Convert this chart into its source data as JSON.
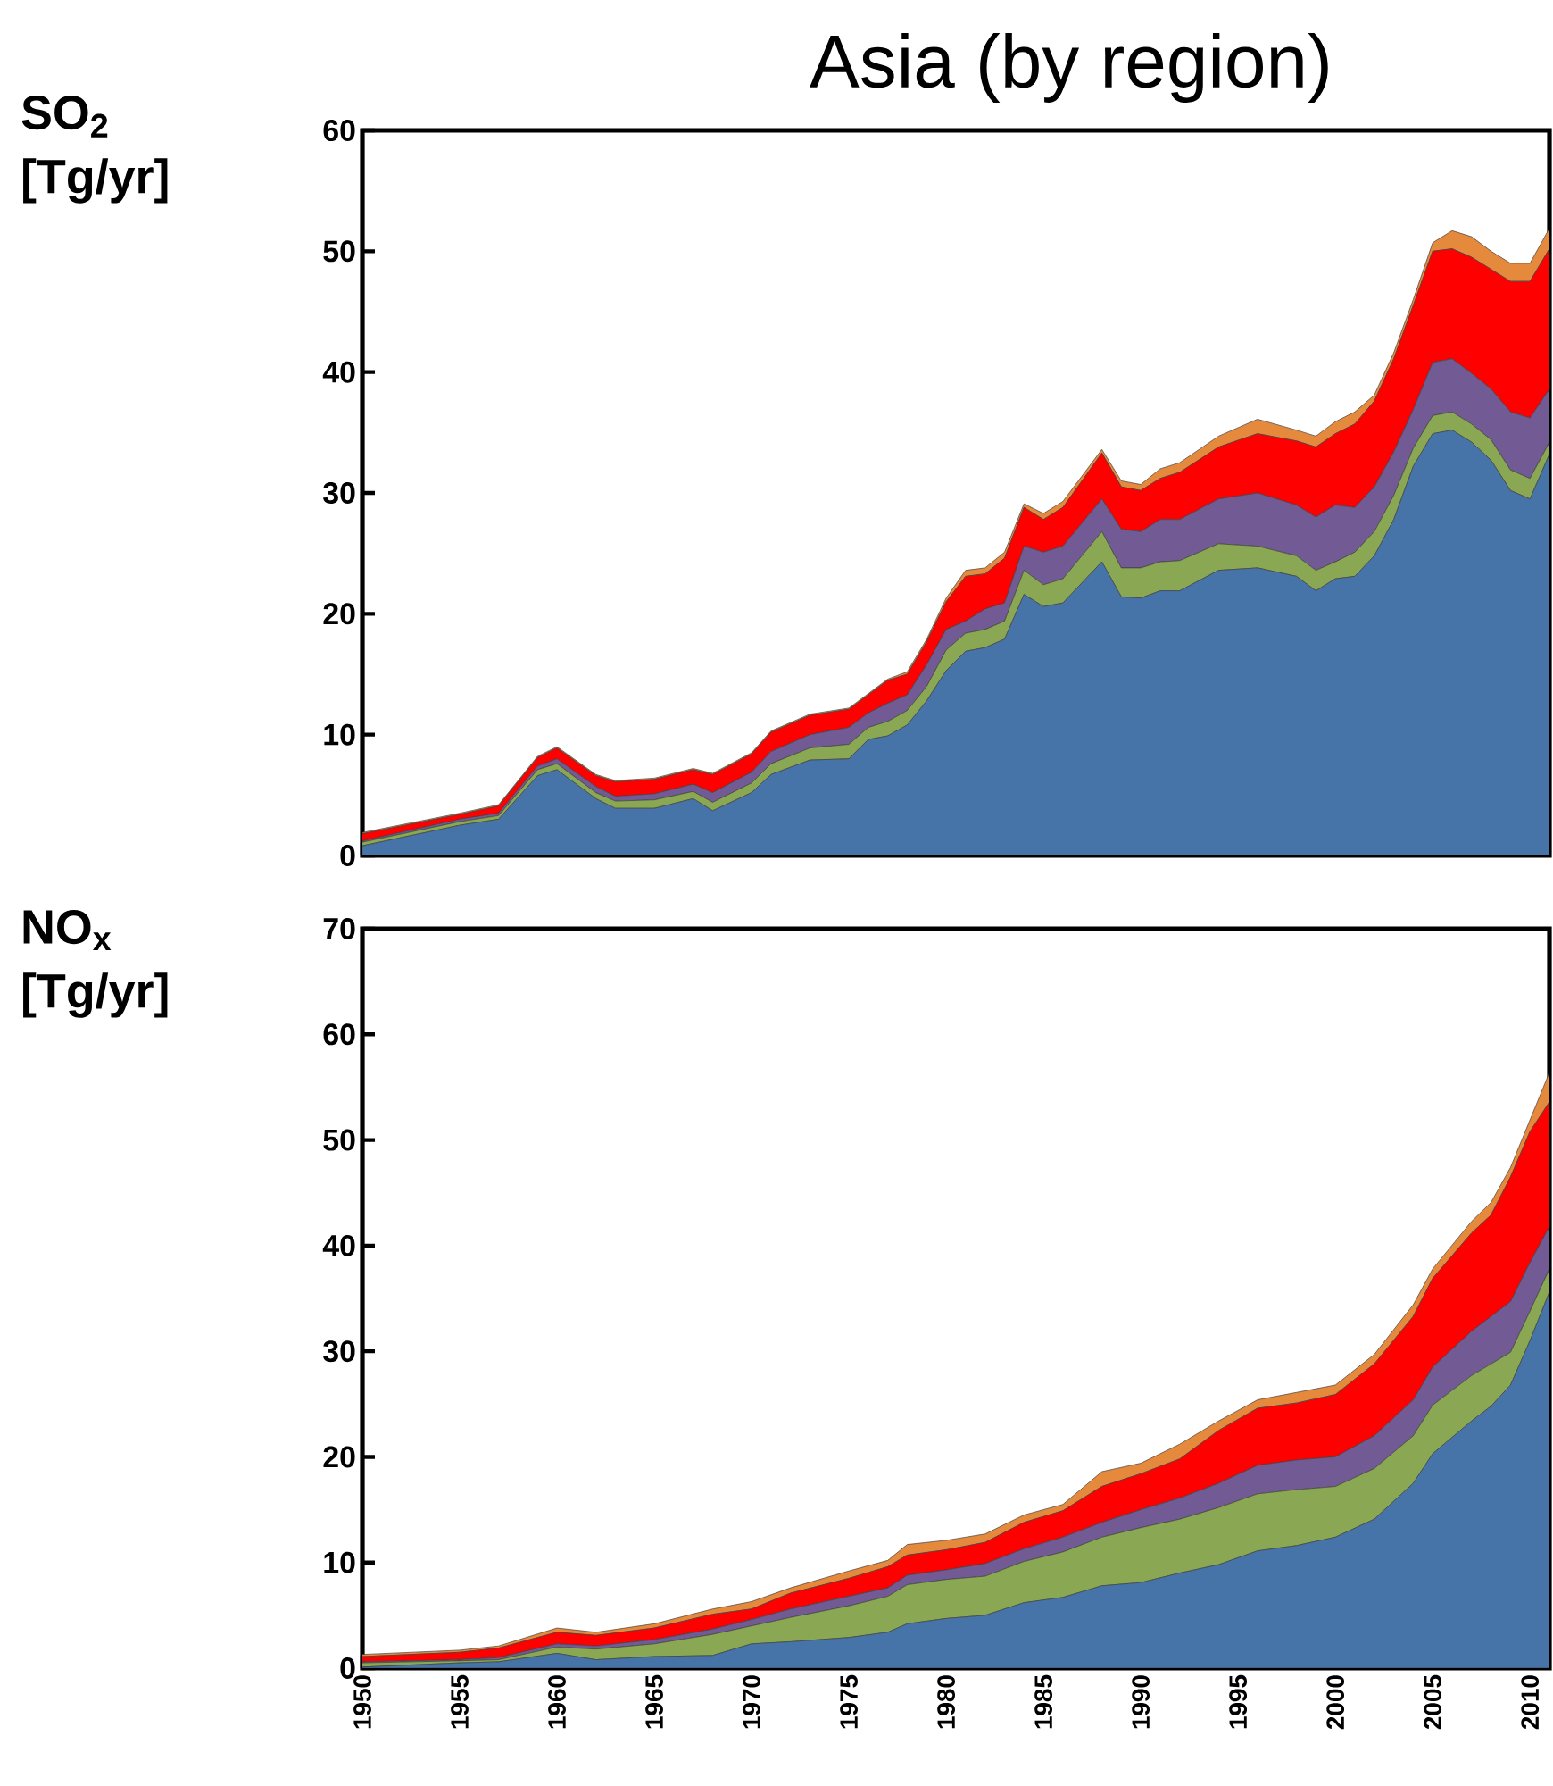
{
  "chart_data": [
    {
      "type": "area",
      "title": "Asia (by region)",
      "ylabel": "SO$_{2}$ [Tg/yr]",
      "stacked": true,
      "tick_labels": "y",
      "x": [
        1950,
        1955,
        1957,
        1959,
        1960,
        1962,
        1963,
        1965,
        1967,
        1968,
        1970,
        1971,
        1973,
        1975,
        1976,
        1977,
        1978,
        1979,
        1980,
        1981,
        1982,
        1983,
        1984,
        1985,
        1986,
        1988,
        1989,
        1990,
        1991,
        1992,
        1994,
        1996,
        1998,
        1999,
        2000,
        2001,
        2002,
        2003,
        2004,
        2005,
        2006,
        2007,
        2008,
        2009,
        2010,
        2011
      ],
      "xlim": [
        1950,
        2011
      ],
      "xticks": [
        1950,
        1955,
        1960,
        1965,
        1970,
        1975,
        1980,
        1985,
        1990,
        1995,
        2000,
        2005,
        2010
      ],
      "ylim": [
        0,
        60
      ],
      "yticks": [
        0,
        10,
        20,
        30,
        40,
        50,
        60
      ],
      "series": [
        {
          "color": "#4673a8",
          "values": [
            0.8,
            2.5,
            3.0,
            6.6,
            7.1,
            4.7,
            3.9,
            3.9,
            4.7,
            3.7,
            5.2,
            6.7,
            7.9,
            8.0,
            9.6,
            9.9,
            10.8,
            12.8,
            15.3,
            16.9,
            17.2,
            17.9,
            21.6,
            20.6,
            20.9,
            24.3,
            21.4,
            21.3,
            21.9,
            21.9,
            23.6,
            23.8,
            23.1,
            21.9,
            22.9,
            23.1,
            24.8,
            27.8,
            32.2,
            34.9,
            35.2,
            34.2,
            32.7,
            30.2,
            29.5,
            33.2
          ]
        },
        {
          "color": "#8aa853",
          "values": [
            0.3,
            0.3,
            0.3,
            0.5,
            0.5,
            0.5,
            0.6,
            0.7,
            0.6,
            0.7,
            0.8,
            0.9,
            1.0,
            1.2,
            1.0,
            1.2,
            1.2,
            1.2,
            1.7,
            1.5,
            1.5,
            1.5,
            2.0,
            1.8,
            2.0,
            2.5,
            2.4,
            2.5,
            2.4,
            2.5,
            2.2,
            1.8,
            1.7,
            1.7,
            1.4,
            2.0,
            2.0,
            2.0,
            1.5,
            1.5,
            1.5,
            1.5,
            1.7,
            1.7,
            1.7,
            1.0
          ]
        },
        {
          "color": "#725b95",
          "values": [
            0.1,
            0.2,
            0.2,
            0.3,
            0.4,
            0.5,
            0.4,
            0.5,
            0.6,
            0.8,
            0.9,
            1.0,
            1.1,
            1.4,
            1.2,
            1.5,
            1.3,
            1.8,
            1.7,
            1.0,
            1.7,
            1.5,
            2.0,
            2.7,
            2.7,
            2.7,
            3.2,
            3.0,
            3.5,
            3.4,
            3.7,
            4.4,
            4.2,
            4.4,
            4.7,
            3.7,
            3.7,
            3.6,
            3.2,
            4.4,
            4.4,
            4.2,
            4.2,
            4.8,
            5.0,
            4.4
          ]
        },
        {
          "color": "#ff0000",
          "values": [
            0.6,
            0.4,
            0.6,
            0.7,
            0.9,
            0.9,
            1.2,
            1.2,
            1.2,
            1.5,
            1.5,
            1.6,
            1.6,
            1.5,
            1.5,
            1.9,
            1.7,
            1.9,
            2.3,
            3.7,
            2.9,
            3.7,
            3.2,
            2.7,
            3.2,
            3.8,
            3.5,
            3.4,
            3.4,
            3.9,
            4.3,
            4.9,
            5.3,
            5.8,
            5.9,
            6.9,
            7.1,
            7.7,
            8.6,
            9.2,
            9.1,
            9.6,
            9.9,
            10.8,
            11.3,
            11.6
          ]
        },
        {
          "color": "#e5893d",
          "values": [
            0.1,
            0.1,
            0.1,
            0.1,
            0.1,
            0.1,
            0.1,
            0.1,
            0.1,
            0.1,
            0.1,
            0.1,
            0.1,
            0.1,
            0.1,
            0.1,
            0.2,
            0.2,
            0.3,
            0.5,
            0.5,
            0.5,
            0.3,
            0.5,
            0.5,
            0.3,
            0.5,
            0.5,
            0.8,
            0.8,
            0.9,
            1.2,
            0.9,
            0.9,
            1.0,
            1.0,
            0.5,
            0.5,
            0.5,
            0.7,
            1.5,
            1.7,
            1.5,
            1.5,
            1.5,
            1.7
          ]
        }
      ]
    },
    {
      "type": "area",
      "ylabel": "NO$_{x}$ [Tg/yr]",
      "stacked": true,
      "x": [
        1950,
        1955,
        1957,
        1960,
        1962,
        1965,
        1968,
        1970,
        1972,
        1975,
        1977,
        1978,
        1980,
        1982,
        1984,
        1986,
        1988,
        1990,
        1992,
        1994,
        1996,
        1998,
        2000,
        2002,
        2004,
        2005,
        2007,
        2008,
        2009,
        2010,
        2011
      ],
      "xlim": [
        1950,
        2011
      ],
      "xticks": [
        1950,
        1955,
        1960,
        1965,
        1970,
        1975,
        1980,
        1985,
        1990,
        1995,
        2000,
        2005,
        2010
      ],
      "ylim": [
        0,
        70
      ],
      "yticks": [
        0,
        10,
        20,
        30,
        40,
        50,
        60,
        70
      ],
      "series": [
        {
          "color": "#4673a8",
          "values": [
            0.1,
            0.5,
            0.6,
            1.4,
            0.8,
            1.1,
            1.2,
            2.3,
            2.5,
            2.9,
            3.4,
            4.2,
            4.7,
            5.0,
            6.2,
            6.7,
            7.8,
            8.1,
            9.0,
            9.8,
            11.1,
            11.6,
            12.4,
            14.1,
            17.5,
            20.3,
            23.4,
            24.8,
            26.8,
            31.0,
            35.6
          ]
        },
        {
          "color": "#8aa853",
          "values": [
            0.4,
            0.2,
            0.2,
            0.6,
            1.0,
            1.2,
            2.0,
            1.7,
            2.3,
            3.0,
            3.4,
            3.7,
            3.7,
            3.7,
            3.9,
            4.3,
            4.6,
            5.2,
            5.1,
            5.4,
            5.4,
            5.3,
            4.8,
            4.8,
            4.5,
            4.6,
            4.3,
            4.0,
            3.1,
            2.8,
            2.2
          ]
        },
        {
          "color": "#725b95",
          "values": [
            0.1,
            0.1,
            0.2,
            0.3,
            0.3,
            0.4,
            0.5,
            0.6,
            0.8,
            0.9,
            0.8,
            0.9,
            0.9,
            1.2,
            1.2,
            1.4,
            1.4,
            1.7,
            2.0,
            2.3,
            2.7,
            2.8,
            2.8,
            3.1,
            3.4,
            3.6,
            4.2,
            4.5,
            4.8,
            4.6,
            4.0
          ]
        },
        {
          "color": "#ff0000",
          "values": [
            0.5,
            0.7,
            0.9,
            1.1,
            1.0,
            1.1,
            1.4,
            1.0,
            1.5,
            1.7,
            2.0,
            1.9,
            1.9,
            2.0,
            2.5,
            2.5,
            3.4,
            3.4,
            3.7,
            5.0,
            5.4,
            5.4,
            5.9,
            6.8,
            7.9,
            8.4,
            9.3,
            9.6,
            11.8,
            12.4,
            11.8
          ]
        },
        {
          "color": "#e5893d",
          "values": [
            0.2,
            0.2,
            0.2,
            0.4,
            0.3,
            0.4,
            0.5,
            0.7,
            0.5,
            0.7,
            0.6,
            1.0,
            0.9,
            0.8,
            0.7,
            0.6,
            1.4,
            1.0,
            1.4,
            0.9,
            0.8,
            1.0,
            0.9,
            0.9,
            1.1,
            0.9,
            1.1,
            1.2,
            0.9,
            1.1,
            2.8
          ]
        }
      ]
    }
  ]
}
